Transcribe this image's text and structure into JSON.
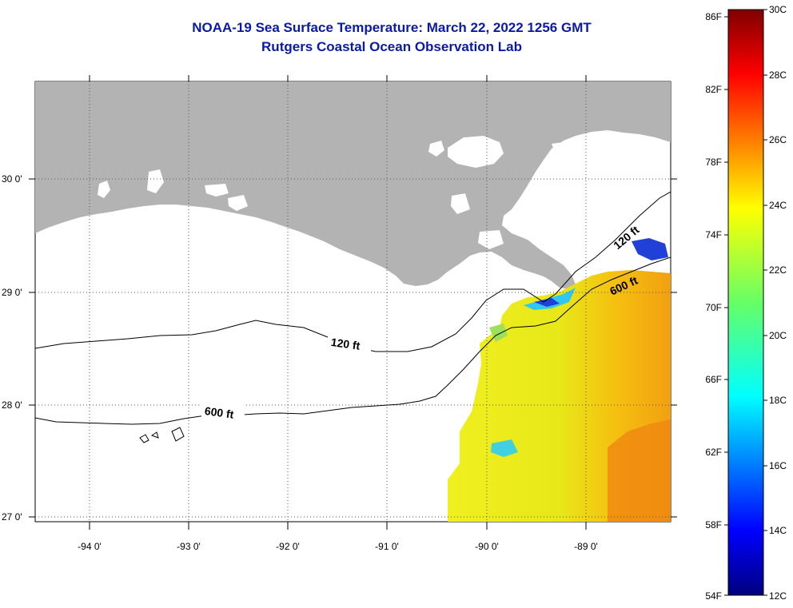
{
  "title": "NOAA-19 Sea Surface Temperature:  March 22, 2022 1256 GMT",
  "subtitle": "Rutgers Coastal Ocean Observation Lab",
  "map": {
    "lon_labels": [
      "-94 0'",
      "-93 0'",
      "-92 0'",
      "-91 0'",
      "-90 0'",
      "-89 0'"
    ],
    "lat_labels": [
      "30 0'",
      "29 0'",
      "28 0'",
      "27 0'"
    ],
    "contours": [
      {
        "label": "120 ft",
        "depth_ft": 120
      },
      {
        "label": "600 ft",
        "depth_ft": 600
      },
      {
        "label": "120 ft",
        "depth_ft": 120
      },
      {
        "label": "600 ft",
        "depth_ft": 600
      }
    ],
    "land_color": "#b3b3b3",
    "water_color": "#ffffff"
  },
  "colorbar": {
    "fahrenheit_labels": [
      "86F",
      "82F",
      "78F",
      "74F",
      "70F",
      "66F",
      "62F",
      "58F",
      "54F"
    ],
    "celsius_labels": [
      "30C",
      "28C",
      "26C",
      "24C",
      "22C",
      "20C",
      "18C",
      "16C",
      "14C",
      "12C"
    ],
    "range_celsius": [
      12,
      30
    ],
    "range_fahrenheit": [
      54,
      86
    ]
  }
}
